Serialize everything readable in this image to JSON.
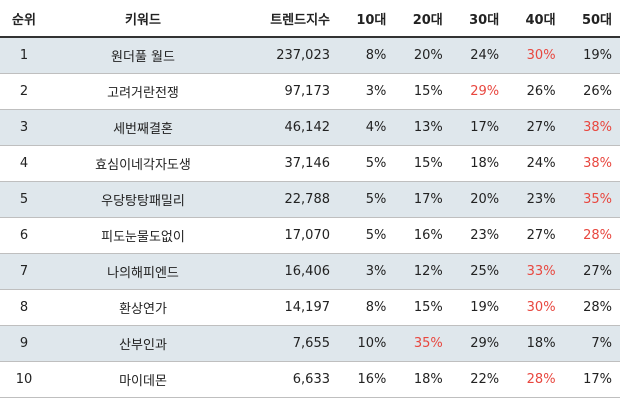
{
  "headers": {
    "rank": "순위",
    "keyword": "키워드",
    "index": "트렌드지수",
    "age10": "10대",
    "age20": "20대",
    "age30": "30대",
    "age40": "40대",
    "age50": "50대"
  },
  "highlight_color": "#e8473f",
  "row_shade_color": "#dfe7ec",
  "rows": [
    {
      "rank": "1",
      "keyword": "원더풀 월드",
      "index": "237,023",
      "age10": "8%",
      "age20": "20%",
      "age30": "24%",
      "age40": "30%",
      "age50": "19%",
      "highlight": "age40"
    },
    {
      "rank": "2",
      "keyword": "고려거란전쟁",
      "index": "97,173",
      "age10": "3%",
      "age20": "15%",
      "age30": "29%",
      "age40": "26%",
      "age50": "26%",
      "highlight": "age30"
    },
    {
      "rank": "3",
      "keyword": "세번째결혼",
      "index": "46,142",
      "age10": "4%",
      "age20": "13%",
      "age30": "17%",
      "age40": "27%",
      "age50": "38%",
      "highlight": "age50"
    },
    {
      "rank": "4",
      "keyword": "효심이네각자도생",
      "index": "37,146",
      "age10": "5%",
      "age20": "15%",
      "age30": "18%",
      "age40": "24%",
      "age50": "38%",
      "highlight": "age50"
    },
    {
      "rank": "5",
      "keyword": "우당탕탕패밀리",
      "index": "22,788",
      "age10": "5%",
      "age20": "17%",
      "age30": "20%",
      "age40": "23%",
      "age50": "35%",
      "highlight": "age50"
    },
    {
      "rank": "6",
      "keyword": "피도눈물도없이",
      "index": "17,070",
      "age10": "5%",
      "age20": "16%",
      "age30": "23%",
      "age40": "27%",
      "age50": "28%",
      "highlight": "age50"
    },
    {
      "rank": "7",
      "keyword": "나의해피엔드",
      "index": "16,406",
      "age10": "3%",
      "age20": "12%",
      "age30": "25%",
      "age40": "33%",
      "age50": "27%",
      "highlight": "age40"
    },
    {
      "rank": "8",
      "keyword": "환상연가",
      "index": "14,197",
      "age10": "8%",
      "age20": "15%",
      "age30": "19%",
      "age40": "30%",
      "age50": "28%",
      "highlight": "age40"
    },
    {
      "rank": "9",
      "keyword": "산부인과",
      "index": "7,655",
      "age10": "10%",
      "age20": "35%",
      "age30": "29%",
      "age40": "18%",
      "age50": "7%",
      "highlight": "age20"
    },
    {
      "rank": "10",
      "keyword": "마이데몬",
      "index": "6,633",
      "age10": "16%",
      "age20": "18%",
      "age30": "22%",
      "age40": "28%",
      "age50": "17%",
      "highlight": "age40"
    }
  ]
}
